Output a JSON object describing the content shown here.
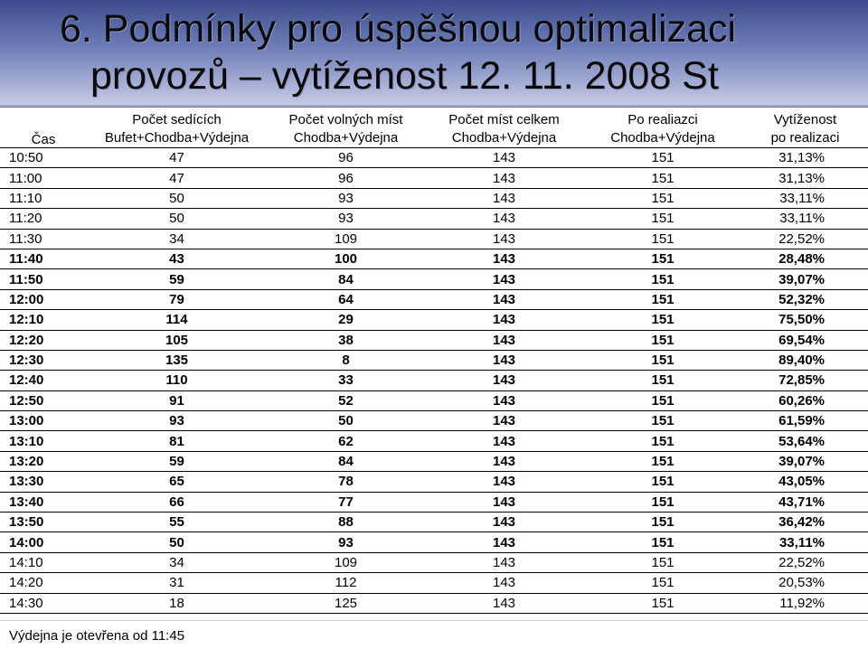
{
  "title": {
    "line1": "6. Podmínky pro úspěšnou optimalizaci",
    "line2": "provozů – vytíženost 12. 11. 2008 St"
  },
  "table": {
    "time_header": "Čas",
    "headers_line1": [
      "Počet sedících",
      "Počet volných míst",
      "Počet míst celkem",
      "Po realiazci",
      "Vytíženost"
    ],
    "headers_line2": [
      "Bufet+Chodba+Výdejna",
      "Chodba+Výdejna",
      "Chodba+Výdejna",
      "Chodba+Výdejna",
      "po realizaci"
    ],
    "rows": [
      {
        "time": "10:50",
        "seated": "47",
        "free": "96",
        "total": "143",
        "after": "151",
        "load": "31,13%",
        "bold": false
      },
      {
        "time": "11:00",
        "seated": "47",
        "free": "96",
        "total": "143",
        "after": "151",
        "load": "31,13%",
        "bold": false
      },
      {
        "time": "11:10",
        "seated": "50",
        "free": "93",
        "total": "143",
        "after": "151",
        "load": "33,11%",
        "bold": false
      },
      {
        "time": "11:20",
        "seated": "50",
        "free": "93",
        "total": "143",
        "after": "151",
        "load": "33,11%",
        "bold": false
      },
      {
        "time": "11:30",
        "seated": "34",
        "free": "109",
        "total": "143",
        "after": "151",
        "load": "22,52%",
        "bold": false
      },
      {
        "time": "11:40",
        "seated": "43",
        "free": "100",
        "total": "143",
        "after": "151",
        "load": "28,48%",
        "bold": true
      },
      {
        "time": "11:50",
        "seated": "59",
        "free": "84",
        "total": "143",
        "after": "151",
        "load": "39,07%",
        "bold": true
      },
      {
        "time": "12:00",
        "seated": "79",
        "free": "64",
        "total": "143",
        "after": "151",
        "load": "52,32%",
        "bold": true
      },
      {
        "time": "12:10",
        "seated": "114",
        "free": "29",
        "total": "143",
        "after": "151",
        "load": "75,50%",
        "bold": true
      },
      {
        "time": "12:20",
        "seated": "105",
        "free": "38",
        "total": "143",
        "after": "151",
        "load": "69,54%",
        "bold": true
      },
      {
        "time": "12:30",
        "seated": "135",
        "free": "8",
        "total": "143",
        "after": "151",
        "load": "89,40%",
        "bold": true
      },
      {
        "time": "12:40",
        "seated": "110",
        "free": "33",
        "total": "143",
        "after": "151",
        "load": "72,85%",
        "bold": true
      },
      {
        "time": "12:50",
        "seated": "91",
        "free": "52",
        "total": "143",
        "after": "151",
        "load": "60,26%",
        "bold": true
      },
      {
        "time": "13:00",
        "seated": "93",
        "free": "50",
        "total": "143",
        "after": "151",
        "load": "61,59%",
        "bold": true
      },
      {
        "time": "13:10",
        "seated": "81",
        "free": "62",
        "total": "143",
        "after": "151",
        "load": "53,64%",
        "bold": true
      },
      {
        "time": "13:20",
        "seated": "59",
        "free": "84",
        "total": "143",
        "after": "151",
        "load": "39,07%",
        "bold": true
      },
      {
        "time": "13:30",
        "seated": "65",
        "free": "78",
        "total": "143",
        "after": "151",
        "load": "43,05%",
        "bold": true
      },
      {
        "time": "13:40",
        "seated": "66",
        "free": "77",
        "total": "143",
        "after": "151",
        "load": "43,71%",
        "bold": true
      },
      {
        "time": "13:50",
        "seated": "55",
        "free": "88",
        "total": "143",
        "after": "151",
        "load": "36,42%",
        "bold": true
      },
      {
        "time": "14:00",
        "seated": "50",
        "free": "93",
        "total": "143",
        "after": "151",
        "load": "33,11%",
        "bold": true
      },
      {
        "time": "14:10",
        "seated": "34",
        "free": "109",
        "total": "143",
        "after": "151",
        "load": "22,52%",
        "bold": false
      },
      {
        "time": "14:20",
        "seated": "31",
        "free": "112",
        "total": "143",
        "after": "151",
        "load": "20,53%",
        "bold": false
      },
      {
        "time": "14:30",
        "seated": "18",
        "free": "125",
        "total": "143",
        "after": "151",
        "load": "11,92%",
        "bold": false
      }
    ]
  },
  "footnote": "Výdejna je otevřena od 11:45",
  "colors": {
    "title_band_top": "#3a4c8c",
    "title_band_bottom": "#c9cde6",
    "table_background": "#ffffff"
  }
}
